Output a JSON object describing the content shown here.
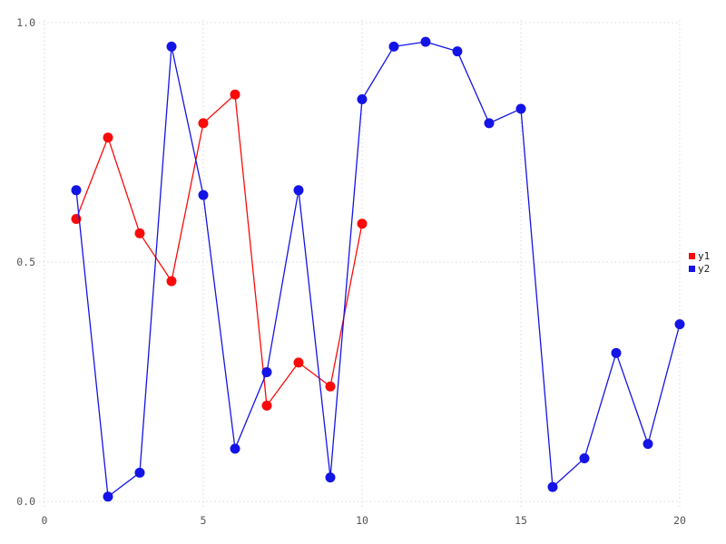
{
  "chart_data": {
    "type": "line",
    "title": "",
    "xlabel": "",
    "ylabel": "",
    "xlim": [
      0,
      20
    ],
    "ylim": [
      0,
      1
    ],
    "xticks": {
      "values": [
        0,
        5,
        10,
        15,
        20
      ],
      "labels": [
        "0",
        "5",
        "10",
        "15",
        "20"
      ]
    },
    "yticks": {
      "values": [
        0,
        0.5,
        1.0
      ],
      "labels": [
        "0.0",
        "0.5",
        "1.0"
      ]
    },
    "grid": "dotted",
    "legend_position": "right-center-outside",
    "colors": {
      "background": "#ffffff",
      "gridline": "#d9d9e3",
      "tick_label": "#545454",
      "legend_text": "#1a1a1a",
      "y1": "#fa0a0a",
      "y2": "#1414e6"
    },
    "series": [
      {
        "name": "y1",
        "color": "#fa0a0a",
        "marker": "circle",
        "x": [
          1,
          2,
          3,
          4,
          5,
          6,
          7,
          8,
          9,
          10
        ],
        "y": [
          0.59,
          0.76,
          0.56,
          0.46,
          0.79,
          0.85,
          0.2,
          0.29,
          0.24,
          0.58
        ]
      },
      {
        "name": "y2",
        "color": "#1414e6",
        "marker": "circle",
        "x": [
          1,
          2,
          3,
          4,
          5,
          6,
          7,
          8,
          9,
          10,
          11,
          12,
          13,
          14,
          15,
          16,
          17,
          18,
          19,
          20
        ],
        "y": [
          0.65,
          0.01,
          0.06,
          0.95,
          0.64,
          0.11,
          0.27,
          0.65,
          0.05,
          0.84,
          0.95,
          0.96,
          0.94,
          0.79,
          0.82,
          0.03,
          0.09,
          0.31,
          0.12,
          0.37
        ]
      }
    ]
  }
}
